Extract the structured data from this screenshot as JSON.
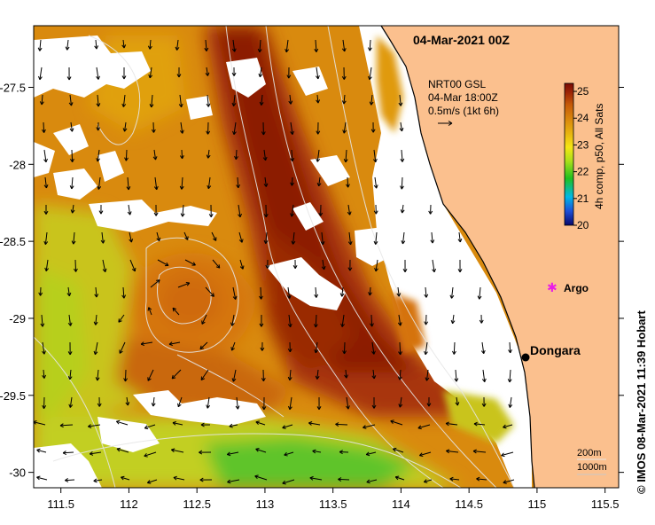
{
  "title": "04-Mar-2021 00Z",
  "current_legend": {
    "line1": "NRT00 GSL",
    "line2": "04-Mar 18:00Z",
    "line3": "0.5m/s (1kt 6h)"
  },
  "colorbar": {
    "title": "4h comp, p50, All Sats",
    "min": 20,
    "max": 25.3,
    "ticks": [
      "25",
      "24",
      "23",
      "22",
      "21",
      "20"
    ],
    "colors": [
      "#08086b",
      "#1d4fd8",
      "#00b8e6",
      "#1fc01f",
      "#a8df1a",
      "#f5e613",
      "#e7b30f",
      "#d9860c",
      "#c65a08",
      "#a02806",
      "#7a0a04"
    ]
  },
  "axes": {
    "x_ticks": [
      "111.5",
      "112",
      "112.5",
      "113",
      "113.5",
      "114",
      "114.5",
      "115",
      "115.5"
    ],
    "y_ticks": [
      "-27.5",
      "-28",
      "-28.5",
      "-29",
      "-29.5",
      "-30"
    ],
    "lon_range": [
      111.3,
      115.6
    ],
    "lat_range": [
      -30.1,
      -27.1
    ]
  },
  "places": [
    {
      "name": "Dongara",
      "lon": 114.93,
      "lat": -29.25,
      "marker": "black-dot"
    },
    {
      "name": "Argo",
      "lon": 115.07,
      "lat": -28.86,
      "marker": "magenta-star"
    }
  ],
  "depth_legend": {
    "line1": "200m",
    "line2": "1000m"
  },
  "credit": "© IMOS 08-Mar-2021 11:39 Hobart",
  "colors": {
    "land": "#fbc08e",
    "cloud": "#ffffff",
    "contour": "#e6e6e6"
  }
}
